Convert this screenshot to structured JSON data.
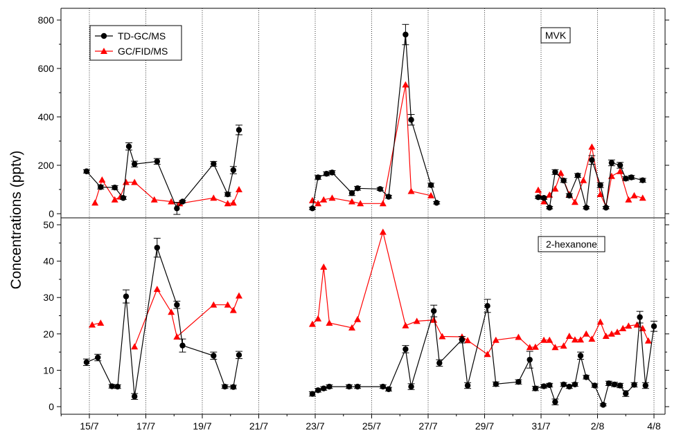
{
  "chart_data": {
    "type": "scatter",
    "ylabel": "Concentrations (pptv)",
    "x_ticks": [
      "15/7",
      "17/7",
      "19/7",
      "21/7",
      "23/7",
      "25/7",
      "27/7",
      "29/7",
      "31/7",
      "2/8",
      "4/8"
    ],
    "legend": [
      {
        "name": "TD-GC/MS",
        "color": "#000000",
        "marker": "circle"
      },
      {
        "name": "GC/FID/MS",
        "color": "#ff0000",
        "marker": "triangle"
      }
    ],
    "panels": [
      {
        "label": "MVK",
        "ylim": [
          0,
          800
        ],
        "y_ticks": [
          0,
          200,
          400,
          600,
          800
        ],
        "series": [
          {
            "name": "TD-GC/MS",
            "color": "#000000",
            "segments": [
              [
                [
                  14.9,
                  175,
                  7
                ],
                [
                  15.4,
                  110,
                  8
                ],
                [
                  15.9,
                  108,
                  8
                ],
                [
                  16.2,
                  65,
                  6
                ],
                [
                  16.4,
                  278,
                  15
                ],
                [
                  16.6,
                  205,
                  12
                ],
                [
                  17.4,
                  216,
                  12
                ],
                [
                  18.1,
                  22,
                  25
                ],
                [
                  18.3,
                  50,
                  5
                ],
                [
                  19.4,
                  206,
                  10
                ],
                [
                  19.9,
                  80,
                  8
                ],
                [
                  20.1,
                  180,
                  15
                ],
                [
                  20.3,
                  346,
                  20
                ]
              ],
              [
                [
                  22.9,
                  22,
                  5
                ],
                [
                  23.1,
                  150,
                  8
                ],
                [
                  23.4,
                  165,
                  8
                ],
                [
                  23.6,
                  170,
                  8
                ],
                [
                  24.3,
                  85,
                  10
                ],
                [
                  24.5,
                  105,
                  8
                ],
                [
                  25.3,
                  102,
                  6
                ],
                [
                  25.6,
                  70,
                  6
                ],
                [
                  26.2,
                  740,
                  42
                ],
                [
                  26.4,
                  388,
                  22
                ],
                [
                  27.1,
                  118,
                  8
                ],
                [
                  27.3,
                  45,
                  5
                ]
              ],
              [
                [
                  30.9,
                  68,
                  5
                ],
                [
                  31.1,
                  65,
                  6
                ],
                [
                  31.3,
                  25,
                  5
                ],
                [
                  31.5,
                  172,
                  10
                ],
                [
                  31.8,
                  137,
                  8
                ],
                [
                  32.0,
                  75,
                  8
                ],
                [
                  32.3,
                  158,
                  8
                ],
                [
                  32.6,
                  25,
                  5
                ],
                [
                  32.8,
                  222,
                  18
                ],
                [
                  33.1,
                  118,
                  10
                ],
                [
                  33.3,
                  25,
                  5
                ],
                [
                  33.5,
                  210,
                  12
                ],
                [
                  33.8,
                  200,
                  12
                ],
                [
                  34.0,
                  145,
                  8
                ],
                [
                  34.2,
                  150,
                  8
                ],
                [
                  34.6,
                  138,
                  8
                ]
              ]
            ]
          },
          {
            "name": "GC/FID/MS",
            "color": "#ff0000",
            "segments": [
              [
                [
                  15.2,
                  45
                ],
                [
                  15.45,
                  140
                ],
                [
                  15.9,
                  58
                ],
                [
                  16.1,
                  70
                ],
                [
                  16.3,
                  130
                ],
                [
                  16.6,
                  130
                ],
                [
                  17.3,
                  58
                ],
                [
                  17.9,
                  50
                ],
                [
                  18.2,
                  42
                ],
                [
                  19.4,
                  65
                ],
                [
                  19.9,
                  42
                ],
                [
                  20.1,
                  45
                ],
                [
                  20.3,
                  100
                ]
              ],
              [
                [
                  22.9,
                  55
                ],
                [
                  23.1,
                  42
                ],
                [
                  23.3,
                  58
                ],
                [
                  23.6,
                  65
                ],
                [
                  24.3,
                  50
                ],
                [
                  24.6,
                  42
                ],
                [
                  25.4,
                  42
                ],
                [
                  26.2,
                  533
                ],
                [
                  26.4,
                  93
                ],
                [
                  27.1,
                  75
                ]
              ],
              [
                [
                  30.9,
                  98
                ],
                [
                  31.1,
                  50
                ],
                [
                  31.3,
                  78
                ],
                [
                  31.5,
                  103
                ],
                [
                  31.7,
                  168
                ],
                [
                  32.0,
                  80
                ],
                [
                  32.2,
                  48
                ],
                [
                  32.5,
                  138
                ],
                [
                  32.8,
                  276
                ],
                [
                  33.1,
                  80
                ],
                [
                  33.3,
                  30
                ],
                [
                  33.5,
                  155
                ],
                [
                  33.8,
                  175
                ],
                [
                  34.1,
                  58
                ],
                [
                  34.3,
                  75
                ],
                [
                  34.6,
                  65
                ]
              ]
            ]
          }
        ]
      },
      {
        "label": "2-hexanone",
        "ylim": [
          0,
          50
        ],
        "y_ticks": [
          0,
          10,
          20,
          30,
          40,
          50
        ],
        "series": [
          {
            "name": "TD-GC/MS",
            "color": "#000000",
            "segments": [
              [
                [
                  14.9,
                  12.2,
                  0.9
                ],
                [
                  15.3,
                  13.5,
                  0.9
                ],
                [
                  15.8,
                  5.6,
                  0.5
                ],
                [
                  16.0,
                  5.5,
                  0.5
                ],
                [
                  16.3,
                  30.3,
                  1.8
                ],
                [
                  16.6,
                  2.8,
                  0.8
                ],
                [
                  17.4,
                  43.7,
                  2.6
                ],
                [
                  18.1,
                  28.0,
                  1.0
                ],
                [
                  18.3,
                  16.8,
                  1.8
                ],
                [
                  19.4,
                  14.0,
                  1.0
                ],
                [
                  19.8,
                  5.5,
                  0.5
                ],
                [
                  20.1,
                  5.4,
                  0.5
                ],
                [
                  20.3,
                  14.2,
                  1.0
                ]
              ],
              [
                [
                  22.9,
                  3.5,
                  0.6
                ],
                [
                  23.1,
                  4.5,
                  0.5
                ],
                [
                  23.3,
                  5.0,
                  0.5
                ],
                [
                  23.5,
                  5.5,
                  0.5
                ],
                [
                  24.2,
                  5.5,
                  0.5
                ],
                [
                  24.5,
                  5.5,
                  0.5
                ],
                [
                  25.4,
                  5.5,
                  0.5
                ],
                [
                  25.6,
                  4.8,
                  0.5
                ],
                [
                  26.2,
                  15.8,
                  1.0
                ],
                [
                  26.4,
                  5.5,
                  0.8
                ],
                [
                  27.2,
                  26.3,
                  1.6
                ],
                [
                  27.4,
                  12.0,
                  0.9
                ],
                [
                  28.2,
                  18.4,
                  0.9
                ],
                [
                  28.4,
                  5.8,
                  0.8
                ],
                [
                  29.1,
                  27.7,
                  1.8
                ],
                [
                  29.4,
                  6.2,
                  0.6
                ],
                [
                  30.2,
                  6.8,
                  0.6
                ],
                [
                  30.6,
                  12.9,
                  2.3
                ],
                [
                  30.8,
                  5.0,
                  0.6
                ],
                [
                  31.1,
                  5.6,
                  0.5
                ],
                [
                  31.3,
                  5.9,
                  0.5
                ],
                [
                  31.5,
                  1.3,
                  0.8
                ],
                [
                  31.8,
                  6.1,
                  0.5
                ],
                [
                  32.0,
                  5.5,
                  0.5
                ],
                [
                  32.2,
                  6.1,
                  0.5
                ],
                [
                  32.4,
                  14.0,
                  1.0
                ],
                [
                  32.6,
                  8.1,
                  0.5
                ],
                [
                  32.9,
                  5.8,
                  0.5
                ],
                [
                  33.2,
                  0.5,
                  0.3
                ],
                [
                  33.4,
                  6.4,
                  0.6
                ],
                [
                  33.6,
                  6.1,
                  0.6
                ],
                [
                  33.8,
                  5.8,
                  0.6
                ],
                [
                  34.0,
                  3.6,
                  0.8
                ],
                [
                  34.3,
                  6.0,
                  0.6
                ],
                [
                  34.5,
                  24.6,
                  1.6
                ],
                [
                  34.7,
                  5.8,
                  0.8
                ],
                [
                  35.0,
                  22.1,
                  1.4
                ]
              ]
            ]
          },
          {
            "name": "GC/FID/MS",
            "color": "#ff0000",
            "segments": [
              [
                [
                  15.1,
                  22.5
                ],
                [
                  15.4,
                  23.0
                ]
              ],
              [
                [
                  16.6,
                  16.5
                ],
                [
                  17.4,
                  32.3
                ],
                [
                  17.9,
                  26.0
                ],
                [
                  18.1,
                  19.2
                ],
                [
                  19.4,
                  28.0
                ],
                [
                  19.9,
                  28.0
                ],
                [
                  20.1,
                  26.5
                ],
                [
                  20.3,
                  30.5
                ]
              ],
              [
                [
                  22.9,
                  22.7
                ],
                [
                  23.1,
                  24.2
                ],
                [
                  23.3,
                  38.4
                ],
                [
                  23.5,
                  23.0
                ],
                [
                  24.3,
                  21.7
                ],
                [
                  24.5,
                  24.0
                ],
                [
                  25.4,
                  48.0
                ],
                [
                  26.2,
                  22.3
                ],
                [
                  26.6,
                  23.5
                ],
                [
                  27.2,
                  23.8
                ],
                [
                  27.5,
                  19.3
                ],
                [
                  28.2,
                  19.2
                ],
                [
                  28.4,
                  18.2
                ],
                [
                  29.1,
                  14.4
                ],
                [
                  29.4,
                  18.3
                ],
                [
                  30.2,
                  19.1
                ],
                [
                  30.6,
                  16.3
                ],
                [
                  30.8,
                  16.4
                ],
                [
                  31.1,
                  18.3
                ],
                [
                  31.3,
                  18.3
                ],
                [
                  31.5,
                  16.3
                ],
                [
                  31.8,
                  16.7
                ],
                [
                  32.0,
                  19.4
                ],
                [
                  32.2,
                  18.4
                ],
                [
                  32.4,
                  18.4
                ],
                [
                  32.6,
                  20.0
                ],
                [
                  32.8,
                  18.6
                ],
                [
                  33.1,
                  23.3
                ],
                [
                  33.3,
                  19.4
                ],
                [
                  33.5,
                  20.0
                ],
                [
                  33.7,
                  20.5
                ],
                [
                  33.9,
                  21.5
                ],
                [
                  34.1,
                  22.2
                ],
                [
                  34.4,
                  22.5
                ],
                [
                  34.6,
                  21.5
                ],
                [
                  34.8,
                  18.1
                ]
              ]
            ]
          }
        ]
      }
    ]
  }
}
